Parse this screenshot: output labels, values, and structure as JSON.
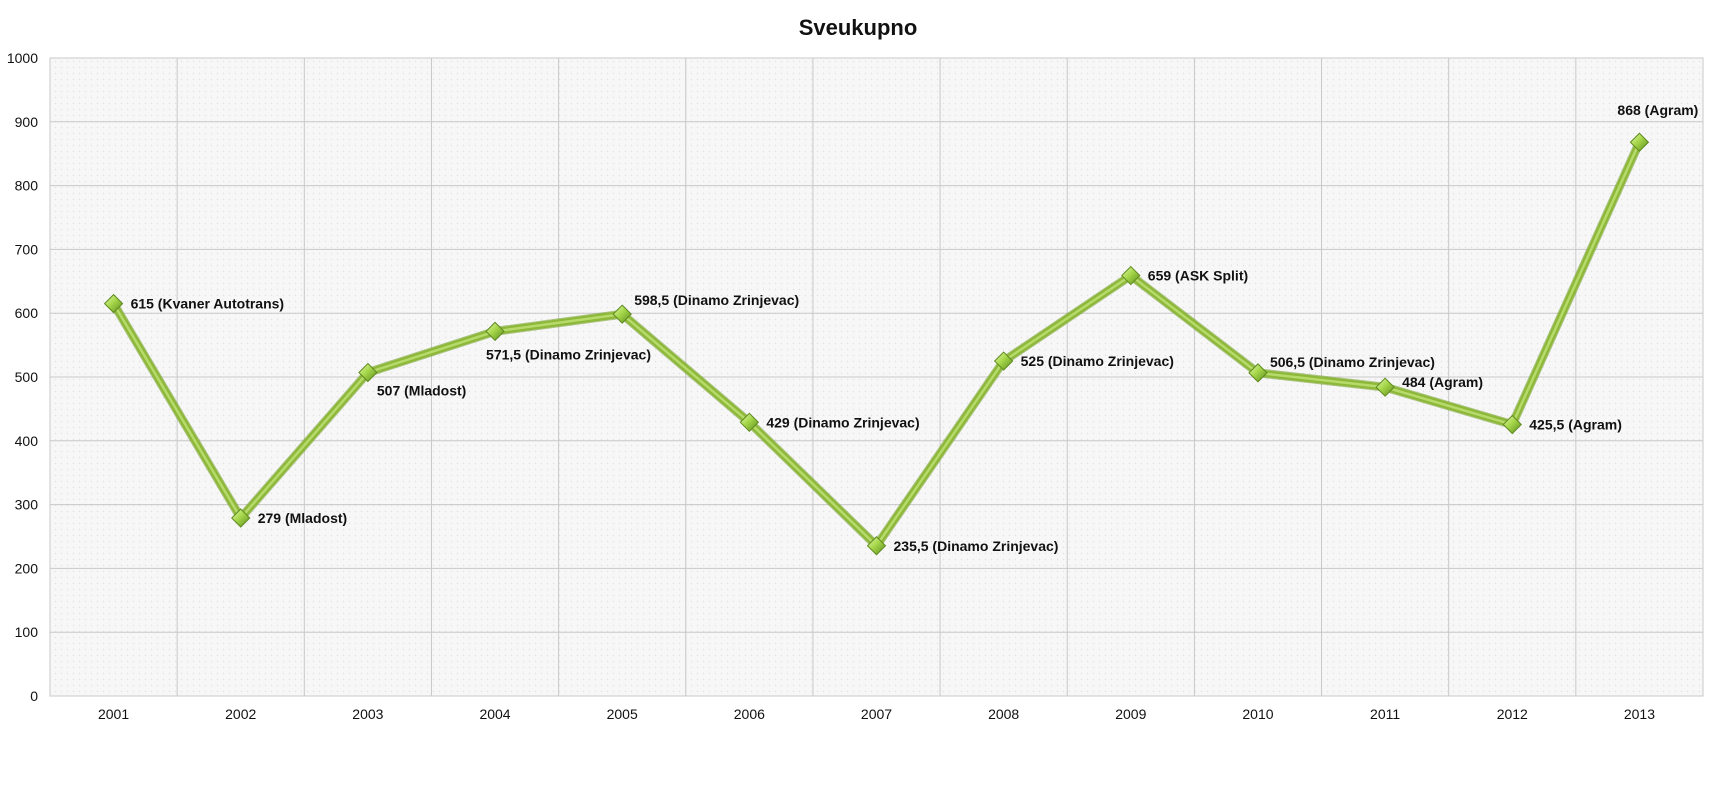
{
  "chart_data": {
    "type": "line",
    "title": "Sveukupno",
    "xlabel": "",
    "ylabel": "",
    "categories": [
      "2001",
      "2002",
      "2003",
      "2004",
      "2005",
      "2006",
      "2007",
      "2008",
      "2009",
      "2010",
      "2011",
      "2012",
      "2013"
    ],
    "values": [
      615,
      279,
      507,
      571.5,
      598.5,
      429,
      235.5,
      525,
      659,
      506.5,
      484,
      425.5,
      868
    ],
    "data_labels": [
      "615 (Kvaner Autotrans)",
      "279 (Mladost)",
      "507 (Mladost)",
      "571,5 (Dinamo Zrinjevac)",
      "598,5 (Dinamo Zrinjevac)",
      "429 (Dinamo Zrinjevac)",
      "235,5 (Dinamo Zrinjevac)",
      "525 (Dinamo Zrinjevac)",
      "659 (ASK Split)",
      "506,5 (Dinamo Zrinjevac)",
      "484 (Agram)",
      "425,5 (Agram)",
      "868 (Agram)"
    ],
    "ylim": [
      0,
      1000
    ],
    "yticks": [
      "0",
      "100",
      "200",
      "300",
      "400",
      "500",
      "600",
      "700",
      "800",
      "900",
      "1000"
    ],
    "grid": true,
    "legend": "none",
    "colors": {
      "line": "#8db83a",
      "line_highlight": "#b7db6a",
      "marker": "#9ccc3c",
      "grid": "#c8c8c8",
      "plot_bg": "#f7f7f7"
    }
  }
}
